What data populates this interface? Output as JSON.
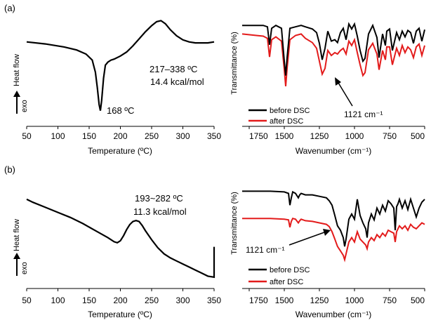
{
  "panel_labels": [
    "(a)",
    "(b)"
  ],
  "charts": [
    {
      "panel": "(a)",
      "kind": "dsc",
      "xlabel": "Temperature (ºC)",
      "ylabel": "Heat flow",
      "exo_label": "exo",
      "xticks": [
        "50",
        "100",
        "150",
        "200",
        "250",
        "300",
        "350"
      ],
      "annotations": [
        "168 ºC",
        "217–338 ºC",
        "14.4 kcal/mol"
      ]
    },
    {
      "panel": "(a)",
      "kind": "ftir",
      "xlabel": "Wavenumber  (cm⁻¹)",
      "ylabel": "Transmittance  (%)",
      "xticks": [
        "1750",
        "1500",
        "1250",
        "1000",
        "750",
        "500"
      ],
      "legend": [
        "before DSC",
        "after DSC"
      ],
      "annotation": "1121 cm⁻¹"
    },
    {
      "panel": "(b)",
      "kind": "dsc",
      "xlabel": "Temperature (ºC)",
      "ylabel": "Heat flow",
      "exo_label": "exo",
      "xticks": [
        "50",
        "100",
        "150",
        "200",
        "250",
        "300",
        "350"
      ],
      "annotations": [
        "193~282 ºC",
        "11.3 kcal/mol"
      ]
    },
    {
      "panel": "(b)",
      "kind": "ftir",
      "xlabel": "Wavenumber  (cm⁻¹)",
      "ylabel": "Transmittance  (%)",
      "xticks": [
        "1750",
        "1500",
        "1250",
        "1000",
        "750",
        "500"
      ],
      "legend": [
        "before DSC",
        "after DSC"
      ],
      "annotation": "1121 cm⁻¹"
    }
  ],
  "colors": {
    "before": "#000000",
    "after": "#e31b1b"
  },
  "chart_data": [
    {
      "type": "line",
      "xlim": [
        50,
        350
      ],
      "series": [
        {
          "x": [
            50,
            80,
            110,
            130,
            145,
            155,
            160,
            163,
            166,
            168,
            170,
            173,
            176,
            180,
            185,
            190,
            200,
            210,
            220,
            230,
            240,
            250,
            258,
            265,
            272,
            280,
            290,
            300,
            310,
            320,
            330,
            340,
            350
          ],
          "y": [
            0.78,
            0.76,
            0.73,
            0.7,
            0.66,
            0.6,
            0.48,
            0.33,
            0.16,
            0.1,
            0.2,
            0.42,
            0.55,
            0.58,
            0.6,
            0.61,
            0.64,
            0.68,
            0.74,
            0.81,
            0.88,
            0.94,
            0.98,
            0.99,
            0.96,
            0.9,
            0.84,
            0.8,
            0.78,
            0.77,
            0.77,
            0.77,
            0.78
          ]
        }
      ]
    },
    {
      "type": "line",
      "xlim": [
        1800,
        500
      ],
      "series": [
        {
          "name": "before DSC",
          "x": [
            1800,
            1700,
            1650,
            1620,
            1605,
            1590,
            1560,
            1520,
            1500,
            1490,
            1480,
            1460,
            1420,
            1380,
            1350,
            1300,
            1270,
            1250,
            1230,
            1210,
            1190,
            1165,
            1140,
            1121,
            1100,
            1080,
            1060,
            1040,
            1020,
            1000,
            980,
            960,
            940,
            925,
            900,
            870,
            840,
            825,
            800,
            780,
            770,
            750,
            730,
            700,
            680,
            660,
            640,
            620,
            600,
            580,
            560,
            540,
            520,
            500
          ],
          "y": [
            0.9,
            0.9,
            0.9,
            0.88,
            0.63,
            0.86,
            0.9,
            0.86,
            0.4,
            0.2,
            0.45,
            0.86,
            0.88,
            0.9,
            0.88,
            0.85,
            0.8,
            0.65,
            0.42,
            0.58,
            0.82,
            0.68,
            0.7,
            0.66,
            0.8,
            0.86,
            0.7,
            0.92,
            0.85,
            0.92,
            0.75,
            0.55,
            0.4,
            0.44,
            0.78,
            0.9,
            0.73,
            0.45,
            0.78,
            0.62,
            0.82,
            0.85,
            0.55,
            0.8,
            0.7,
            0.82,
            0.74,
            0.83,
            0.8,
            0.65,
            0.82,
            0.86,
            0.68,
            0.84
          ]
        },
        {
          "name": "after DSC",
          "x": [
            1800,
            1700,
            1650,
            1620,
            1605,
            1590,
            1560,
            1520,
            1500,
            1490,
            1480,
            1460,
            1420,
            1380,
            1350,
            1300,
            1270,
            1250,
            1230,
            1210,
            1190,
            1165,
            1140,
            1121,
            1100,
            1080,
            1060,
            1040,
            1020,
            1000,
            980,
            960,
            940,
            925,
            900,
            870,
            840,
            825,
            800,
            780,
            770,
            750,
            730,
            700,
            680,
            660,
            640,
            620,
            600,
            580,
            560,
            540,
            520,
            500
          ],
          "y": [
            0.78,
            0.76,
            0.75,
            0.72,
            0.46,
            0.7,
            0.74,
            0.68,
            0.28,
            0.05,
            0.3,
            0.7,
            0.76,
            0.78,
            0.72,
            0.66,
            0.58,
            0.4,
            0.22,
            0.3,
            0.55,
            0.48,
            0.52,
            0.5,
            0.55,
            0.58,
            0.5,
            0.68,
            0.62,
            0.7,
            0.52,
            0.35,
            0.2,
            0.24,
            0.56,
            0.65,
            0.5,
            0.28,
            0.55,
            0.42,
            0.6,
            0.6,
            0.35,
            0.58,
            0.48,
            0.62,
            0.52,
            0.6,
            0.56,
            0.45,
            0.6,
            0.64,
            0.48,
            0.62
          ]
        }
      ]
    },
    {
      "type": "line",
      "xlim": [
        50,
        350
      ],
      "series": [
        {
          "x": [
            50,
            60,
            80,
            100,
            120,
            140,
            160,
            180,
            190,
            195,
            200,
            205,
            210,
            215,
            220,
            225,
            230,
            235,
            240,
            250,
            260,
            270,
            280,
            290,
            300,
            310,
            320,
            330,
            340,
            350,
            350
          ],
          "y": [
            0.82,
            0.79,
            0.74,
            0.69,
            0.64,
            0.58,
            0.51,
            0.44,
            0.4,
            0.39,
            0.41,
            0.46,
            0.52,
            0.57,
            0.6,
            0.61,
            0.6,
            0.56,
            0.51,
            0.42,
            0.34,
            0.28,
            0.24,
            0.21,
            0.18,
            0.15,
            0.12,
            0.09,
            0.06,
            0.05,
            0.35
          ]
        }
      ]
    },
    {
      "type": "line",
      "xlim": [
        1800,
        500
      ],
      "series": [
        {
          "name": "before DSC",
          "x": [
            1800,
            1700,
            1600,
            1500,
            1470,
            1460,
            1450,
            1440,
            1420,
            1400,
            1390,
            1380,
            1350,
            1300,
            1250,
            1200,
            1180,
            1160,
            1140,
            1121,
            1100,
            1080,
            1070,
            1060,
            1040,
            1020,
            1000,
            980,
            960,
            940,
            920,
            910,
            900,
            880,
            860,
            840,
            820,
            800,
            780,
            760,
            740,
            720,
            710,
            700,
            690,
            680,
            660,
            640,
            620,
            600,
            580,
            560,
            540,
            520,
            500
          ],
          "y": [
            0.93,
            0.93,
            0.93,
            0.92,
            0.9,
            0.74,
            0.84,
            0.92,
            0.9,
            0.84,
            0.88,
            0.9,
            0.88,
            0.88,
            0.86,
            0.84,
            0.8,
            0.74,
            0.6,
            0.46,
            0.4,
            0.3,
            0.18,
            0.28,
            0.55,
            0.62,
            0.55,
            0.82,
            0.6,
            0.5,
            0.42,
            0.3,
            0.5,
            0.62,
            0.54,
            0.7,
            0.62,
            0.74,
            0.66,
            0.8,
            0.76,
            0.7,
            0.4,
            0.72,
            0.76,
            0.82,
            0.7,
            0.8,
            0.68,
            0.82,
            0.7,
            0.58,
            0.7,
            0.78,
            0.82
          ]
        },
        {
          "name": "after DSC",
          "x": [
            1800,
            1700,
            1600,
            1500,
            1470,
            1460,
            1450,
            1440,
            1420,
            1400,
            1390,
            1380,
            1350,
            1300,
            1250,
            1200,
            1180,
            1160,
            1140,
            1121,
            1100,
            1080,
            1070,
            1060,
            1040,
            1020,
            1000,
            980,
            960,
            940,
            920,
            910,
            900,
            880,
            860,
            840,
            820,
            800,
            780,
            760,
            740,
            720,
            710,
            700,
            690,
            680,
            660,
            640,
            620,
            600,
            580,
            560,
            540,
            520,
            500
          ],
          "y": [
            0.56,
            0.56,
            0.56,
            0.55,
            0.54,
            0.44,
            0.52,
            0.56,
            0.55,
            0.5,
            0.53,
            0.55,
            0.53,
            0.52,
            0.5,
            0.48,
            0.45,
            0.38,
            0.28,
            0.18,
            0.12,
            0.06,
            0.0,
            0.08,
            0.24,
            0.3,
            0.24,
            0.38,
            0.28,
            0.24,
            0.2,
            0.15,
            0.24,
            0.3,
            0.26,
            0.34,
            0.3,
            0.36,
            0.32,
            0.4,
            0.38,
            0.36,
            0.24,
            0.38,
            0.42,
            0.46,
            0.42,
            0.46,
            0.4,
            0.48,
            0.44,
            0.42,
            0.46,
            0.5,
            0.48
          ]
        }
      ]
    }
  ]
}
